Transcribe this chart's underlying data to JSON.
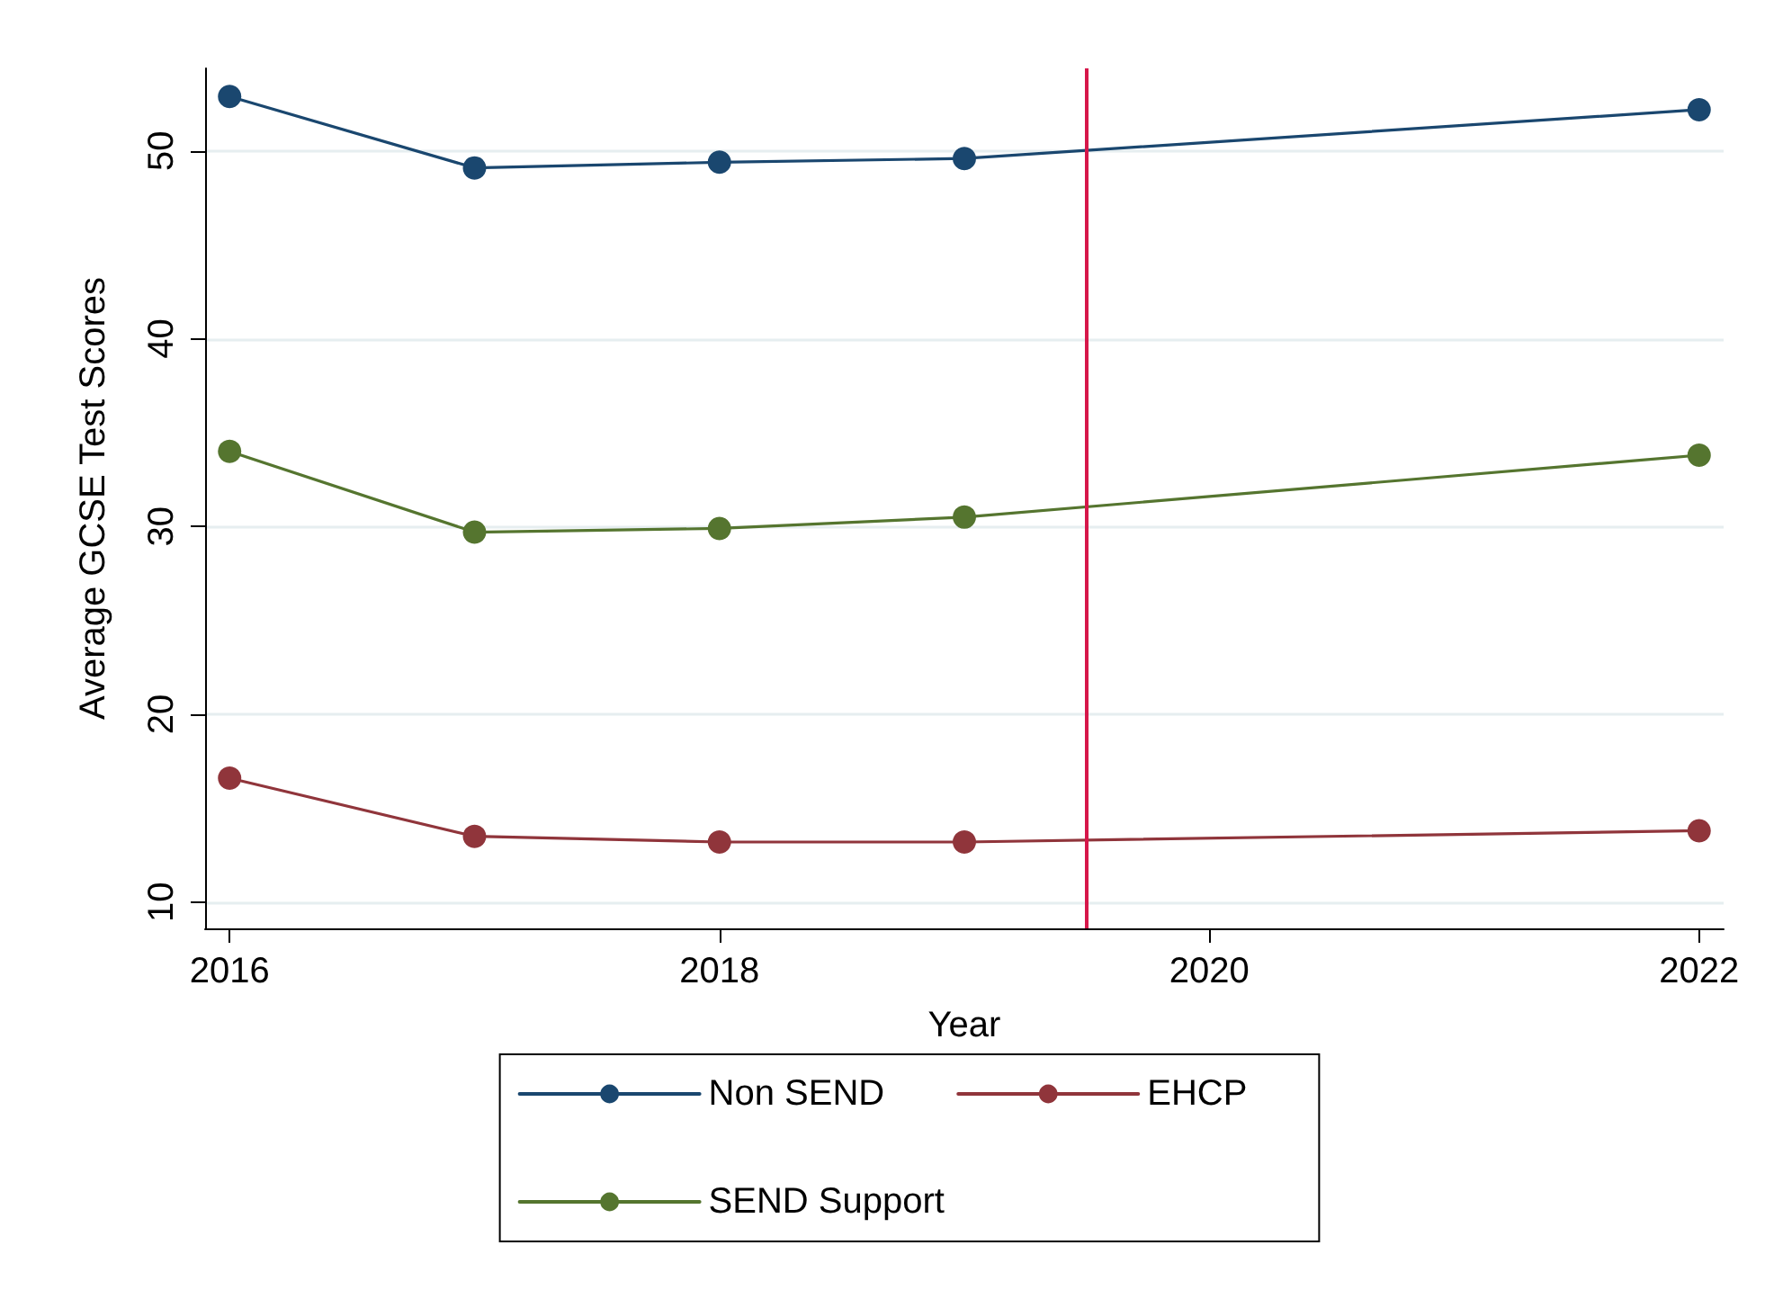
{
  "chart_data": {
    "type": "line",
    "xlabel": "Year",
    "ylabel": "Average GCSE Test Scores",
    "x": [
      2016,
      2017,
      2018,
      2019,
      2022
    ],
    "series": [
      {
        "name": "Non SEND",
        "color": "#1a476f",
        "values": [
          52.9,
          49.1,
          49.4,
          49.6,
          52.2
        ]
      },
      {
        "name": "EHCP",
        "color": "#90353b",
        "values": [
          16.6,
          13.5,
          13.2,
          13.2,
          13.8
        ]
      },
      {
        "name": "SEND Support",
        "color": "#55752f",
        "values": [
          34.0,
          29.7,
          29.9,
          30.5,
          33.8
        ]
      }
    ],
    "xlim": [
      2015.9,
      2022.1
    ],
    "xticks": [
      2016,
      2018,
      2020,
      2022
    ],
    "ylim": [
      8.6,
      54.4
    ],
    "yticks": [
      10,
      20,
      30,
      40,
      50
    ],
    "ref_lines": [
      {
        "axis": "x",
        "value": 2019.5,
        "color": "#d6174a"
      }
    ],
    "grid": "y",
    "legend": "bottom",
    "marker": "circle",
    "line_style": "solid"
  }
}
